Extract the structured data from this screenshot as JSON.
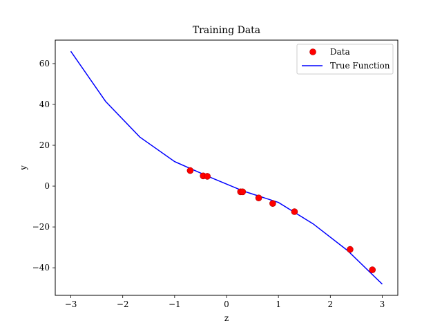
{
  "chart_data": {
    "type": "scatter",
    "title": "Training Data",
    "xlabel": "z",
    "ylabel": "y",
    "xlim": [
      -3.3,
      3.3
    ],
    "ylim": [
      -53.5,
      71.5
    ],
    "xticks": [
      -3,
      -2,
      -1,
      0,
      1,
      2,
      3
    ],
    "yticks": [
      -40,
      -20,
      0,
      20,
      40,
      60
    ],
    "grid": false,
    "legend_position": "top-right",
    "colors": {
      "data": "#ff0000",
      "data_edge": "#b00000",
      "line": "#0000ff"
    },
    "series": [
      {
        "name": "Data",
        "kind": "scatter",
        "x": [
          -0.7,
          -0.45,
          -0.37,
          0.27,
          0.31,
          0.62,
          0.89,
          1.31,
          2.38,
          2.81
        ],
        "y": [
          7.6,
          5.0,
          4.8,
          -2.8,
          -2.8,
          -5.8,
          -8.5,
          -12.5,
          -31.0,
          -41.0
        ]
      },
      {
        "name": "True Function",
        "kind": "line",
        "x": [
          -3.0,
          -2.33,
          -1.67,
          -1.0,
          -0.33,
          0.33,
          1.0,
          1.67,
          2.33,
          3.0
        ],
        "y": [
          66.0,
          41.5,
          24.0,
          12.0,
          4.5,
          -2.5,
          -8.0,
          -18.5,
          -31.5,
          -48.0
        ]
      }
    ]
  }
}
